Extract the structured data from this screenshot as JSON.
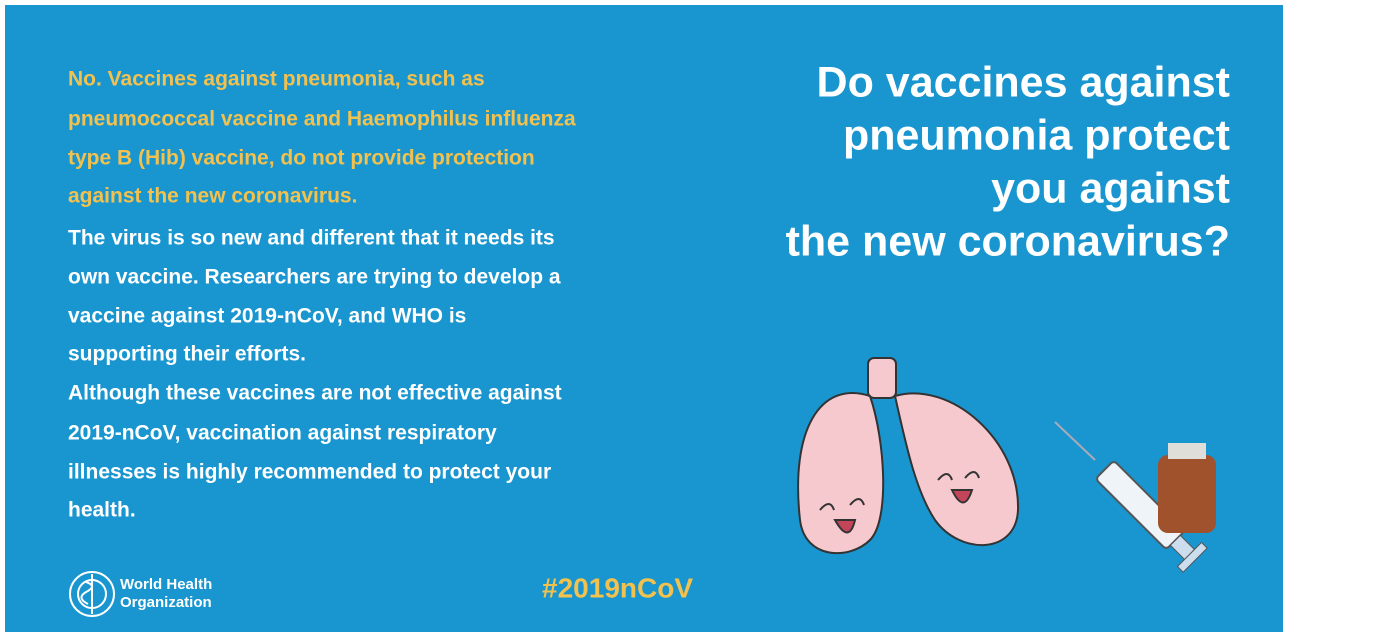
{
  "question": {
    "lines": [
      "Do vaccines against",
      "pneumonia protect",
      "you against",
      "the new coronavirus?"
    ]
  },
  "answer": {
    "lines": [
      "No. Vaccines against pneumonia, such as",
      "pneumococcal vaccine and Haemophilus influenza",
      "type B (Hib) vaccine, do not provide protection",
      "against the new coronavirus."
    ]
  },
  "explanation": [
    {
      "lines": [
        "The virus is so new and different that it needs its",
        "own vaccine. Researchers are trying to develop a",
        "vaccine against 2019-nCoV, and WHO is",
        "supporting their efforts."
      ]
    },
    {
      "lines": [
        "Although these vaccines are not effective against",
        "2019-nCoV, vaccination against respiratory",
        "illnesses is highly recommended to protect your",
        "health."
      ]
    }
  ],
  "logo": {
    "lines": [
      "World Health",
      "Organization"
    ]
  },
  "hashtag": "#2019nCoV"
}
